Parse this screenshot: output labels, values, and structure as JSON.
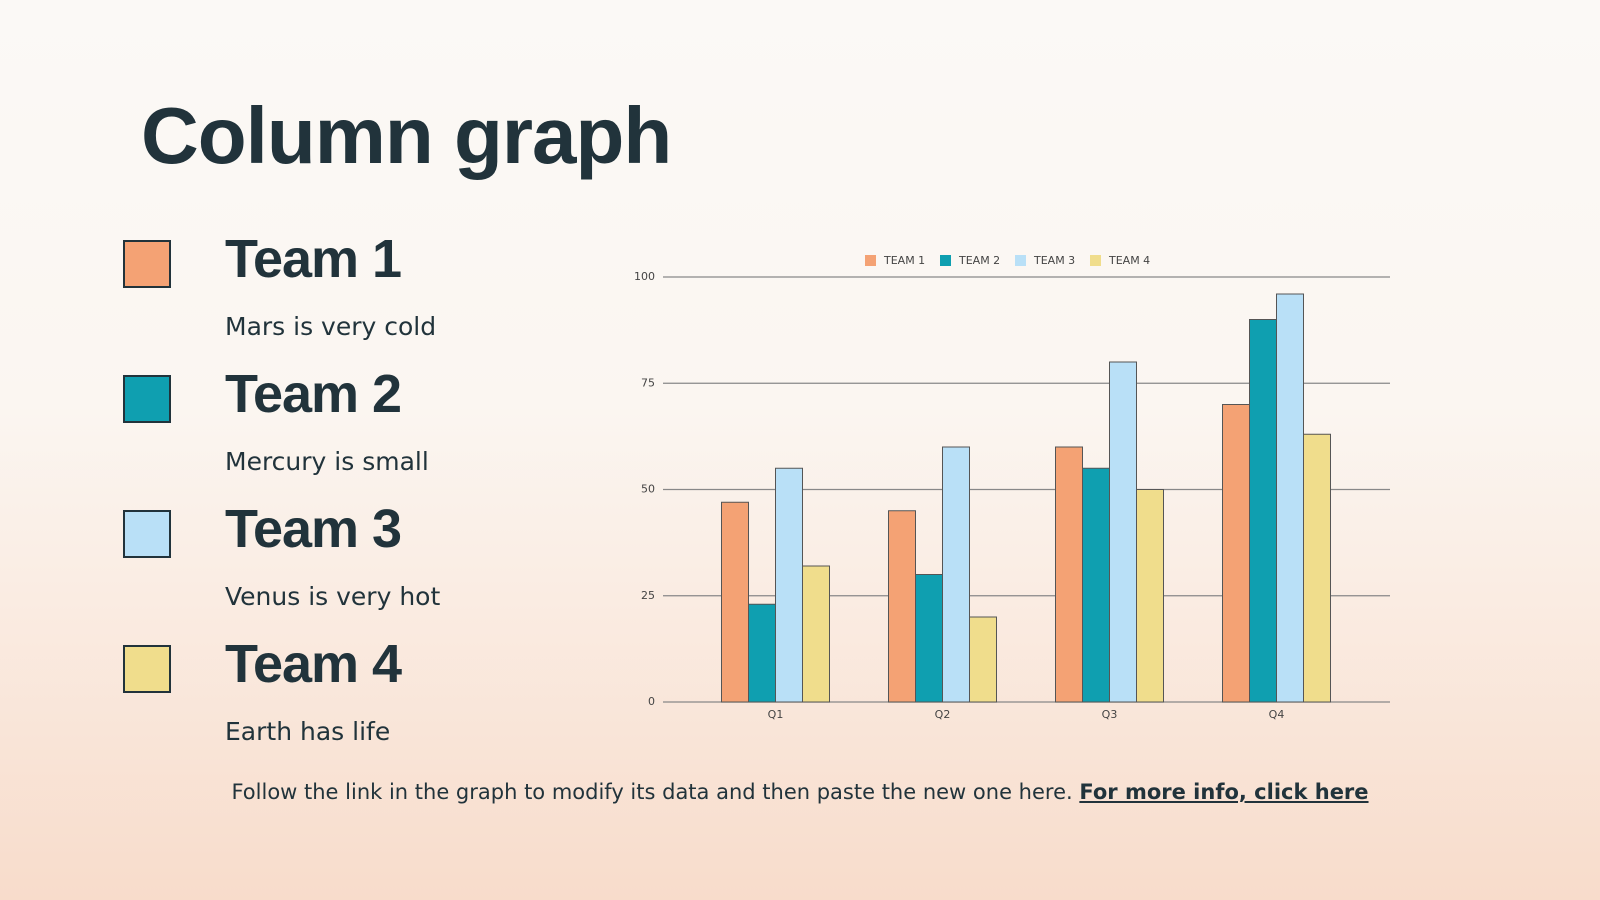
{
  "title": "Column graph",
  "items": [
    {
      "name": "Team 1",
      "description": "Mars is very cold",
      "color": "#f4a274"
    },
    {
      "name": "Team 2",
      "description": "Mercury is small",
      "color": "#0f9fb0"
    },
    {
      "name": "Team 3",
      "description": "Venus is very hot",
      "color": "#b9e0f7"
    },
    {
      "name": "Team 4",
      "description": "Earth has life",
      "color": "#f0dd8c"
    }
  ],
  "footer": {
    "text": "Follow the link in the graph to modify its data and then paste the new one here.",
    "link": "For more info, click here"
  },
  "chart_data": {
    "type": "bar",
    "categories": [
      "Q1",
      "Q2",
      "Q3",
      "Q4"
    ],
    "series": [
      {
        "name": "TEAM 1",
        "color": "#f4a274",
        "values": [
          47,
          45,
          60,
          70
        ]
      },
      {
        "name": "TEAM 2",
        "color": "#0f9fb0",
        "values": [
          23,
          30,
          55,
          90
        ]
      },
      {
        "name": "TEAM 3",
        "color": "#b9e0f7",
        "values": [
          55,
          60,
          80,
          96
        ]
      },
      {
        "name": "TEAM 4",
        "color": "#f0dd8c",
        "values": [
          32,
          20,
          50,
          63
        ]
      }
    ],
    "ylim": [
      0,
      100
    ],
    "yticks": [
      0,
      25,
      50,
      75,
      100
    ],
    "grid": true,
    "legend": "top"
  }
}
